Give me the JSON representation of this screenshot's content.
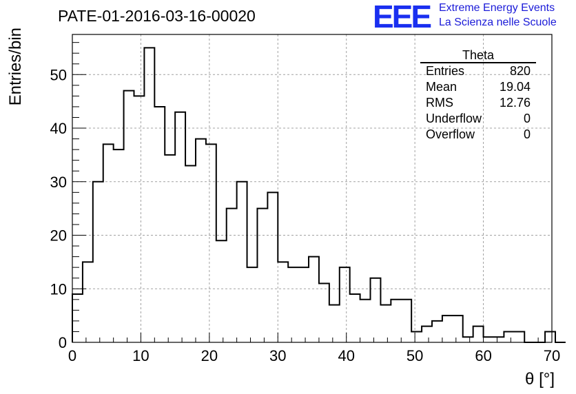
{
  "header": {
    "title": "PATE-01-2016-03-16-00020",
    "logo": "EEE",
    "logo_line1": "Extreme Energy Events",
    "logo_line2": "La Scienza nelle Scuole"
  },
  "stats_box": {
    "title": "Theta",
    "rows": [
      {
        "label": "Entries",
        "value": "820"
      },
      {
        "label": "Mean",
        "value": "19.04"
      },
      {
        "label": "RMS",
        "value": "12.76"
      },
      {
        "label": "Underflow",
        "value": "0"
      },
      {
        "label": "Overflow",
        "value": "0"
      }
    ]
  },
  "colors": {
    "logo": "#1a2ff0",
    "line": "#000000",
    "grid": "#a0a0a0"
  },
  "chart_data": {
    "type": "bar",
    "histogram": true,
    "xlabel": "θ [°]",
    "ylabel": "Entries/bin",
    "xlim": [
      0,
      70
    ],
    "ylim": [
      0,
      57.5
    ],
    "grid": true,
    "x_ticks": [
      0,
      10,
      20,
      30,
      40,
      50,
      60,
      70
    ],
    "y_ticks": [
      0,
      10,
      20,
      30,
      40,
      50
    ],
    "bin_edges_start": 0,
    "bin_width": 1.5,
    "values": [
      9,
      15,
      30,
      37,
      36,
      47,
      46,
      55,
      44,
      35,
      43,
      33,
      38,
      37,
      19,
      25,
      30,
      14,
      25,
      28,
      15,
      14,
      14,
      16,
      11,
      7,
      14,
      9,
      8,
      12,
      7,
      8,
      8,
      2,
      3,
      4,
      5,
      5,
      1,
      3,
      1,
      1,
      2,
      2,
      0,
      0,
      2,
      0
    ]
  }
}
